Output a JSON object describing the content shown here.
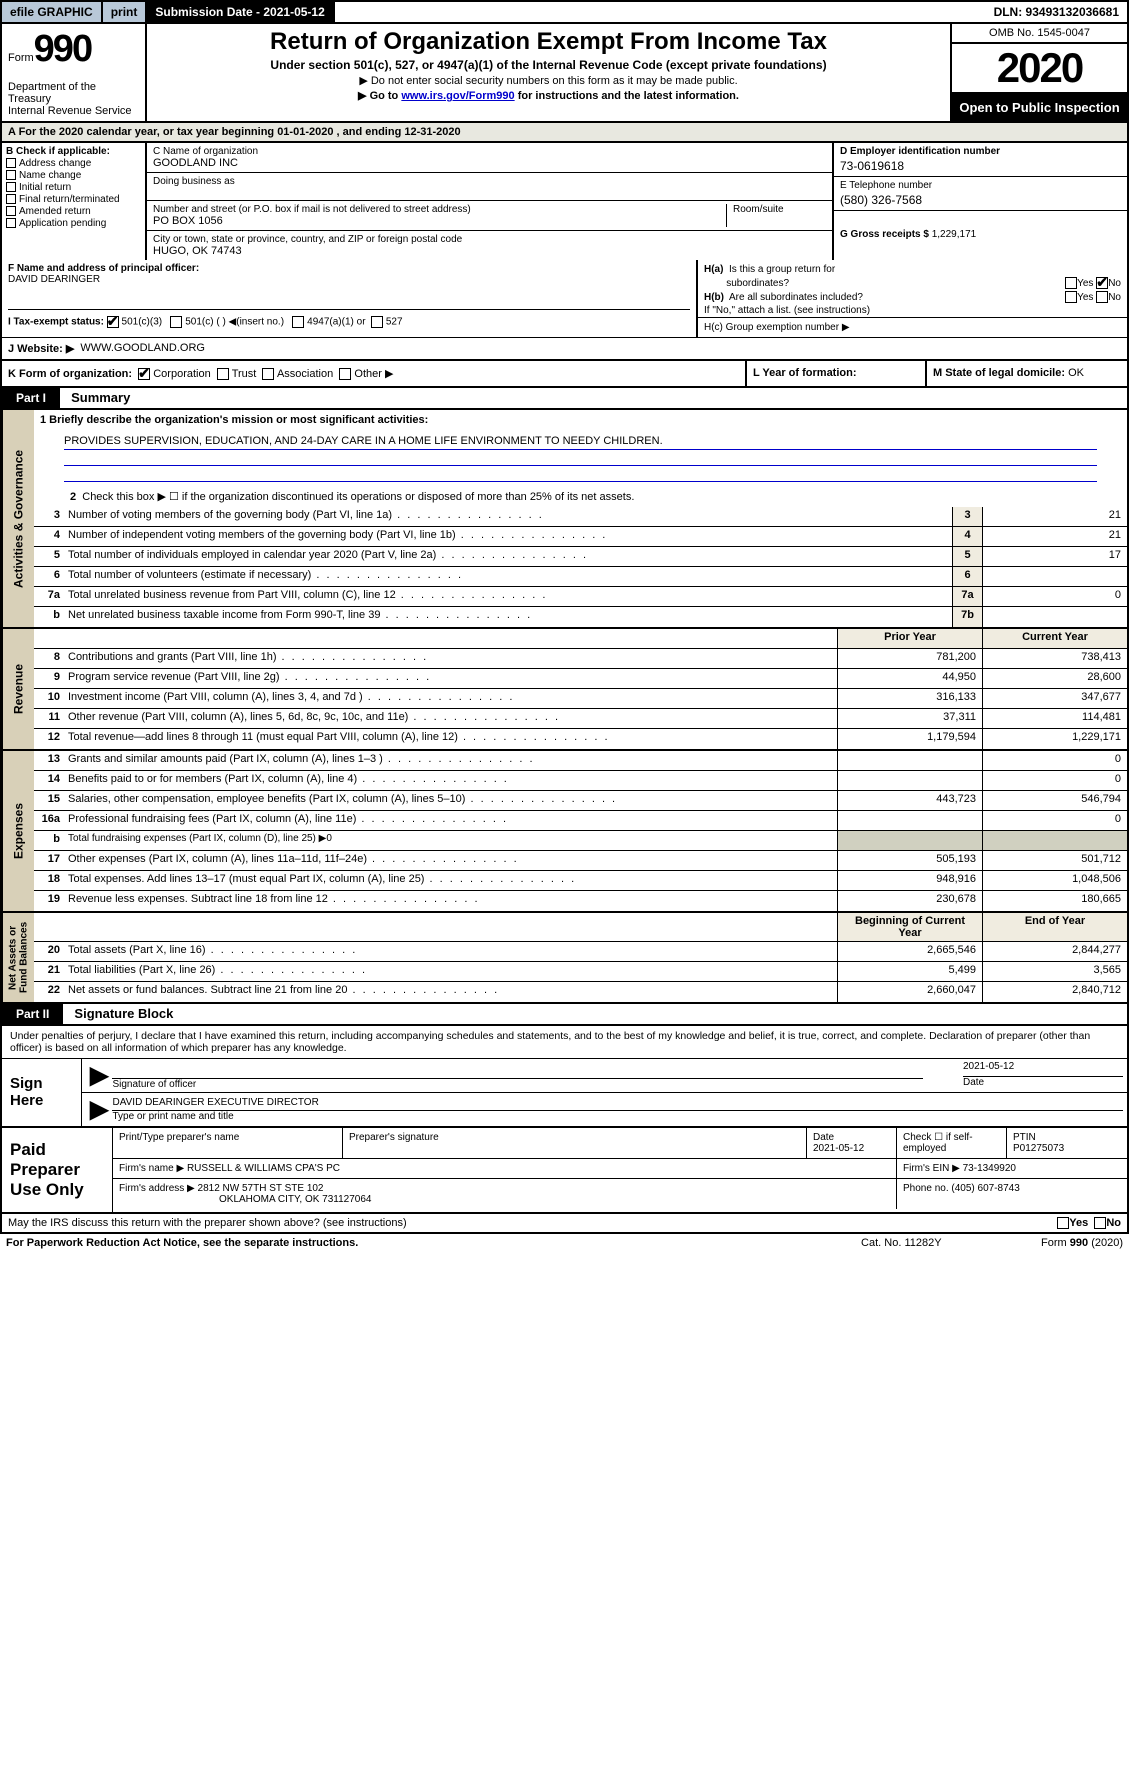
{
  "topbar": {
    "graphic": "efile GRAPHIC",
    "print": "print",
    "subdate_label": "Submission Date - 2021-05-12",
    "dln": "DLN: 93493132036681"
  },
  "header": {
    "form_label": "Form",
    "form_num": "990",
    "dept": "Department of the Treasury\nInternal Revenue Service",
    "title": "Return of Organization Exempt From Income Tax",
    "subtitle": "Under section 501(c), 527, or 4947(a)(1) of the Internal Revenue Code (except private foundations)",
    "note1": "▶ Do not enter social security numbers on this form as it may be made public.",
    "note2_pre": "▶ Go to ",
    "note2_link": "www.irs.gov/Form990",
    "note2_post": " for instructions and the latest information.",
    "omb": "OMB No. 1545-0047",
    "year": "2020",
    "inspection": "Open to Public Inspection"
  },
  "period": "A For the 2020 calendar year, or tax year beginning 01-01-2020    , and ending 12-31-2020",
  "sectionB": {
    "label": "B Check if applicable:",
    "items": [
      "Address change",
      "Name change",
      "Initial return",
      "Final return/terminated",
      "Amended return",
      "Application pending"
    ]
  },
  "sectionC": {
    "name_label": "C Name of organization",
    "name": "GOODLAND INC",
    "dba_label": "Doing business as",
    "dba": "",
    "addr_label": "Number and street (or P.O. box if mail is not delivered to street address)",
    "room_label": "Room/suite",
    "addr": "PO BOX 1056",
    "city_label": "City or town, state or province, country, and ZIP or foreign postal code",
    "city": "HUGO, OK  74743"
  },
  "sectionD": {
    "label": "D Employer identification number",
    "val": "73-0619618"
  },
  "sectionE": {
    "label": "E Telephone number",
    "val": "(580) 326-7568"
  },
  "sectionG": {
    "label": "G Gross receipts $",
    "val": "1,229,171"
  },
  "sectionF": {
    "label": "F  Name and address of principal officer:",
    "val": "DAVID DEARINGER"
  },
  "sectionH": {
    "a": "H(a)  Is this a group return for subordinates?",
    "b": "H(b)  Are all subordinates included?",
    "b_note": "If \"No,\" attach a list. (see instructions)",
    "c": "H(c)  Group exemption number ▶",
    "yes": "Yes",
    "no": "No"
  },
  "sectionI": {
    "label": "I    Tax-exempt status:",
    "opts": [
      "501(c)(3)",
      "501(c) (  ) ◀(insert no.)",
      "4947(a)(1) or",
      "527"
    ]
  },
  "sectionJ": {
    "label": "J    Website: ▶",
    "val": "WWW.GOODLAND.ORG"
  },
  "sectionK": {
    "label": "K Form of organization:",
    "opts": [
      "Corporation",
      "Trust",
      "Association",
      "Other ▶"
    ]
  },
  "sectionL": {
    "label": "L Year of formation:",
    "val": ""
  },
  "sectionM": {
    "label": "M State of legal domicile:",
    "val": "OK"
  },
  "part1": {
    "tag": "Part I",
    "title": "Summary"
  },
  "summary": {
    "l1_label": "1  Briefly describe the organization's mission or most significant activities:",
    "l1_val": "PROVIDES SUPERVISION, EDUCATION, AND 24-DAY CARE IN A HOME LIFE ENVIRONMENT TO NEEDY CHILDREN.",
    "l2": "Check this box ▶ ☐  if the organization discontinued its operations or disposed of more than 25% of its net assets.",
    "lines_gov": [
      {
        "n": "3",
        "d": "Number of voting members of the governing body (Part VI, line 1a)",
        "bn": "3",
        "v": "21"
      },
      {
        "n": "4",
        "d": "Number of independent voting members of the governing body (Part VI, line 1b)",
        "bn": "4",
        "v": "21"
      },
      {
        "n": "5",
        "d": "Total number of individuals employed in calendar year 2020 (Part V, line 2a)",
        "bn": "5",
        "v": "17"
      },
      {
        "n": "6",
        "d": "Total number of volunteers (estimate if necessary)",
        "bn": "6",
        "v": ""
      },
      {
        "n": "7a",
        "d": "Total unrelated business revenue from Part VIII, column (C), line 12",
        "bn": "7a",
        "v": "0"
      },
      {
        "n": "b",
        "d": "Net unrelated business taxable income from Form 990-T, line 39",
        "bn": "7b",
        "v": ""
      }
    ],
    "col_prior": "Prior Year",
    "col_current": "Current Year",
    "lines_rev": [
      {
        "n": "8",
        "d": "Contributions and grants (Part VIII, line 1h)",
        "p": "781,200",
        "c": "738,413"
      },
      {
        "n": "9",
        "d": "Program service revenue (Part VIII, line 2g)",
        "p": "44,950",
        "c": "28,600"
      },
      {
        "n": "10",
        "d": "Investment income (Part VIII, column (A), lines 3, 4, and 7d )",
        "p": "316,133",
        "c": "347,677"
      },
      {
        "n": "11",
        "d": "Other revenue (Part VIII, column (A), lines 5, 6d, 8c, 9c, 10c, and 11e)",
        "p": "37,311",
        "c": "114,481"
      },
      {
        "n": "12",
        "d": "Total revenue—add lines 8 through 11 (must equal Part VIII, column (A), line 12)",
        "p": "1,179,594",
        "c": "1,229,171"
      }
    ],
    "lines_exp": [
      {
        "n": "13",
        "d": "Grants and similar amounts paid (Part IX, column (A), lines 1–3 )",
        "p": "",
        "c": "0"
      },
      {
        "n": "14",
        "d": "Benefits paid to or for members (Part IX, column (A), line 4)",
        "p": "",
        "c": "0"
      },
      {
        "n": "15",
        "d": "Salaries, other compensation, employee benefits (Part IX, column (A), lines 5–10)",
        "p": "443,723",
        "c": "546,794"
      },
      {
        "n": "16a",
        "d": "Professional fundraising fees (Part IX, column (A), line 11e)",
        "p": "",
        "c": "0"
      },
      {
        "n": "b",
        "d": "Total fundraising expenses (Part IX, column (D), line 25) ▶0",
        "p": "—",
        "c": "—"
      },
      {
        "n": "17",
        "d": "Other expenses (Part IX, column (A), lines 11a–11d, 11f–24e)",
        "p": "505,193",
        "c": "501,712"
      },
      {
        "n": "18",
        "d": "Total expenses. Add lines 13–17 (must equal Part IX, column (A), line 25)",
        "p": "948,916",
        "c": "1,048,506"
      },
      {
        "n": "19",
        "d": "Revenue less expenses. Subtract line 18 from line 12",
        "p": "230,678",
        "c": "180,665"
      }
    ],
    "col_begin": "Beginning of Current Year",
    "col_end": "End of Year",
    "lines_net": [
      {
        "n": "20",
        "d": "Total assets (Part X, line 16)",
        "p": "2,665,546",
        "c": "2,844,277"
      },
      {
        "n": "21",
        "d": "Total liabilities (Part X, line 26)",
        "p": "5,499",
        "c": "3,565"
      },
      {
        "n": "22",
        "d": "Net assets or fund balances. Subtract line 21 from line 20",
        "p": "2,660,047",
        "c": "2,840,712"
      }
    ]
  },
  "vtabs": {
    "gov": "Activities & Governance",
    "rev": "Revenue",
    "exp": "Expenses",
    "net": "Net Assets or\nFund Balances"
  },
  "part2": {
    "tag": "Part II",
    "title": "Signature Block"
  },
  "sig": {
    "perjury": "Under penalties of perjury, I declare that I have examined this return, including accompanying schedules and statements, and to the best of my knowledge and belief, it is true, correct, and complete. Declaration of preparer (other than officer) is based on all information of which preparer has any knowledge.",
    "sign_here": "Sign Here",
    "sig_officer": "Signature of officer",
    "date": "2021-05-12",
    "date_label": "Date",
    "name": "DAVID DEARINGER  EXECUTIVE DIRECTOR",
    "name_label": "Type or print name and title"
  },
  "paid": {
    "label": "Paid Preparer Use Only",
    "h1": "Print/Type preparer's name",
    "h2": "Preparer's signature",
    "h3": "Date",
    "h4": "Check ☐ if self-employed",
    "h5": "PTIN",
    "date": "2021-05-12",
    "ptin": "P01275073",
    "firm_label": "Firm's name    ▶",
    "firm": "RUSSELL & WILLIAMS CPA'S PC",
    "ein_label": "Firm's EIN ▶",
    "ein": "73-1349920",
    "addr_label": "Firm's address ▶",
    "addr1": "2812 NW 57TH ST STE 102",
    "addr2": "OKLAHOMA CITY, OK  731127064",
    "phone_label": "Phone no.",
    "phone": "(405) 607-8743"
  },
  "footer": {
    "discuss": "May the IRS discuss this return with the preparer shown above? (see instructions)",
    "yes": "Yes",
    "no": "No",
    "paperwork": "For Paperwork Reduction Act Notice, see the separate instructions.",
    "cat": "Cat. No. 11282Y",
    "form": "Form 990 (2020)"
  }
}
